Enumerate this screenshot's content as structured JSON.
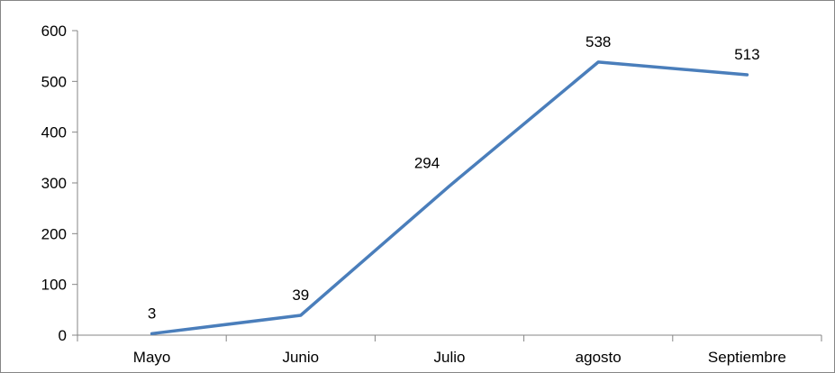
{
  "chart_data": {
    "type": "line",
    "title": "",
    "xlabel": "",
    "ylabel": "",
    "categories": [
      "Mayo",
      "Junio",
      "Julio",
      "agosto",
      "Septiembre"
    ],
    "series": [
      {
        "values": [
          3,
          39,
          294,
          538,
          513
        ],
        "color": "#4a7ebb"
      }
    ],
    "data_labels": [
      "3",
      "39",
      "294",
      "538",
      "513"
    ],
    "ylim": [
      0,
      600
    ],
    "yticks": [
      0,
      100,
      200,
      300,
      400,
      500,
      600
    ],
    "ytick_labels": [
      "0",
      "100",
      "200",
      "300",
      "400",
      "500",
      "600"
    ],
    "grid": false,
    "legend": "none"
  }
}
